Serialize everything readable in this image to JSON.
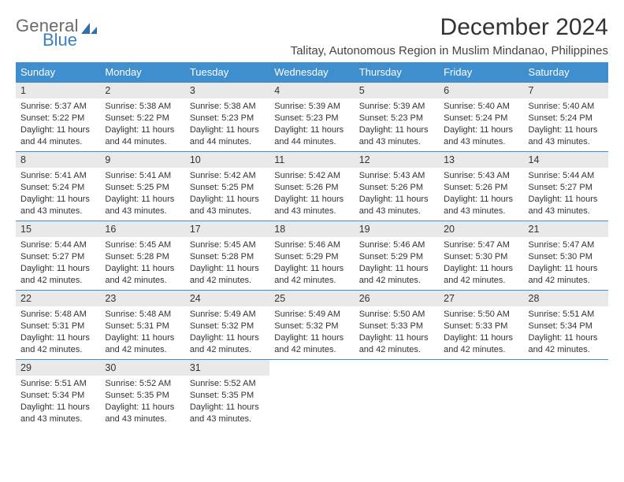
{
  "brand": {
    "line1": "General",
    "line2": "Blue"
  },
  "title": "December 2024",
  "location": "Talitay, Autonomous Region in Muslim Mindanao, Philippines",
  "colors": {
    "header_bg": "#3f8fce",
    "header_text": "#ffffff",
    "daynum_bg": "#e9e9e9",
    "rule": "#3f8fce",
    "text": "#333333",
    "logo_gray": "#6a6a6a",
    "logo_blue": "#3a7fc4"
  },
  "weekdays": [
    "Sunday",
    "Monday",
    "Tuesday",
    "Wednesday",
    "Thursday",
    "Friday",
    "Saturday"
  ],
  "weeks": [
    [
      {
        "n": "1",
        "sr": "Sunrise: 5:37 AM",
        "ss": "Sunset: 5:22 PM",
        "d1": "Daylight: 11 hours",
        "d2": "and 44 minutes."
      },
      {
        "n": "2",
        "sr": "Sunrise: 5:38 AM",
        "ss": "Sunset: 5:22 PM",
        "d1": "Daylight: 11 hours",
        "d2": "and 44 minutes."
      },
      {
        "n": "3",
        "sr": "Sunrise: 5:38 AM",
        "ss": "Sunset: 5:23 PM",
        "d1": "Daylight: 11 hours",
        "d2": "and 44 minutes."
      },
      {
        "n": "4",
        "sr": "Sunrise: 5:39 AM",
        "ss": "Sunset: 5:23 PM",
        "d1": "Daylight: 11 hours",
        "d2": "and 44 minutes."
      },
      {
        "n": "5",
        "sr": "Sunrise: 5:39 AM",
        "ss": "Sunset: 5:23 PM",
        "d1": "Daylight: 11 hours",
        "d2": "and 43 minutes."
      },
      {
        "n": "6",
        "sr": "Sunrise: 5:40 AM",
        "ss": "Sunset: 5:24 PM",
        "d1": "Daylight: 11 hours",
        "d2": "and 43 minutes."
      },
      {
        "n": "7",
        "sr": "Sunrise: 5:40 AM",
        "ss": "Sunset: 5:24 PM",
        "d1": "Daylight: 11 hours",
        "d2": "and 43 minutes."
      }
    ],
    [
      {
        "n": "8",
        "sr": "Sunrise: 5:41 AM",
        "ss": "Sunset: 5:24 PM",
        "d1": "Daylight: 11 hours",
        "d2": "and 43 minutes."
      },
      {
        "n": "9",
        "sr": "Sunrise: 5:41 AM",
        "ss": "Sunset: 5:25 PM",
        "d1": "Daylight: 11 hours",
        "d2": "and 43 minutes."
      },
      {
        "n": "10",
        "sr": "Sunrise: 5:42 AM",
        "ss": "Sunset: 5:25 PM",
        "d1": "Daylight: 11 hours",
        "d2": "and 43 minutes."
      },
      {
        "n": "11",
        "sr": "Sunrise: 5:42 AM",
        "ss": "Sunset: 5:26 PM",
        "d1": "Daylight: 11 hours",
        "d2": "and 43 minutes."
      },
      {
        "n": "12",
        "sr": "Sunrise: 5:43 AM",
        "ss": "Sunset: 5:26 PM",
        "d1": "Daylight: 11 hours",
        "d2": "and 43 minutes."
      },
      {
        "n": "13",
        "sr": "Sunrise: 5:43 AM",
        "ss": "Sunset: 5:26 PM",
        "d1": "Daylight: 11 hours",
        "d2": "and 43 minutes."
      },
      {
        "n": "14",
        "sr": "Sunrise: 5:44 AM",
        "ss": "Sunset: 5:27 PM",
        "d1": "Daylight: 11 hours",
        "d2": "and 43 minutes."
      }
    ],
    [
      {
        "n": "15",
        "sr": "Sunrise: 5:44 AM",
        "ss": "Sunset: 5:27 PM",
        "d1": "Daylight: 11 hours",
        "d2": "and 42 minutes."
      },
      {
        "n": "16",
        "sr": "Sunrise: 5:45 AM",
        "ss": "Sunset: 5:28 PM",
        "d1": "Daylight: 11 hours",
        "d2": "and 42 minutes."
      },
      {
        "n": "17",
        "sr": "Sunrise: 5:45 AM",
        "ss": "Sunset: 5:28 PM",
        "d1": "Daylight: 11 hours",
        "d2": "and 42 minutes."
      },
      {
        "n": "18",
        "sr": "Sunrise: 5:46 AM",
        "ss": "Sunset: 5:29 PM",
        "d1": "Daylight: 11 hours",
        "d2": "and 42 minutes."
      },
      {
        "n": "19",
        "sr": "Sunrise: 5:46 AM",
        "ss": "Sunset: 5:29 PM",
        "d1": "Daylight: 11 hours",
        "d2": "and 42 minutes."
      },
      {
        "n": "20",
        "sr": "Sunrise: 5:47 AM",
        "ss": "Sunset: 5:30 PM",
        "d1": "Daylight: 11 hours",
        "d2": "and 42 minutes."
      },
      {
        "n": "21",
        "sr": "Sunrise: 5:47 AM",
        "ss": "Sunset: 5:30 PM",
        "d1": "Daylight: 11 hours",
        "d2": "and 42 minutes."
      }
    ],
    [
      {
        "n": "22",
        "sr": "Sunrise: 5:48 AM",
        "ss": "Sunset: 5:31 PM",
        "d1": "Daylight: 11 hours",
        "d2": "and 42 minutes."
      },
      {
        "n": "23",
        "sr": "Sunrise: 5:48 AM",
        "ss": "Sunset: 5:31 PM",
        "d1": "Daylight: 11 hours",
        "d2": "and 42 minutes."
      },
      {
        "n": "24",
        "sr": "Sunrise: 5:49 AM",
        "ss": "Sunset: 5:32 PM",
        "d1": "Daylight: 11 hours",
        "d2": "and 42 minutes."
      },
      {
        "n": "25",
        "sr": "Sunrise: 5:49 AM",
        "ss": "Sunset: 5:32 PM",
        "d1": "Daylight: 11 hours",
        "d2": "and 42 minutes."
      },
      {
        "n": "26",
        "sr": "Sunrise: 5:50 AM",
        "ss": "Sunset: 5:33 PM",
        "d1": "Daylight: 11 hours",
        "d2": "and 42 minutes."
      },
      {
        "n": "27",
        "sr": "Sunrise: 5:50 AM",
        "ss": "Sunset: 5:33 PM",
        "d1": "Daylight: 11 hours",
        "d2": "and 42 minutes."
      },
      {
        "n": "28",
        "sr": "Sunrise: 5:51 AM",
        "ss": "Sunset: 5:34 PM",
        "d1": "Daylight: 11 hours",
        "d2": "and 42 minutes."
      }
    ],
    [
      {
        "n": "29",
        "sr": "Sunrise: 5:51 AM",
        "ss": "Sunset: 5:34 PM",
        "d1": "Daylight: 11 hours",
        "d2": "and 43 minutes."
      },
      {
        "n": "30",
        "sr": "Sunrise: 5:52 AM",
        "ss": "Sunset: 5:35 PM",
        "d1": "Daylight: 11 hours",
        "d2": "and 43 minutes."
      },
      {
        "n": "31",
        "sr": "Sunrise: 5:52 AM",
        "ss": "Sunset: 5:35 PM",
        "d1": "Daylight: 11 hours",
        "d2": "and 43 minutes."
      },
      null,
      null,
      null,
      null
    ]
  ]
}
